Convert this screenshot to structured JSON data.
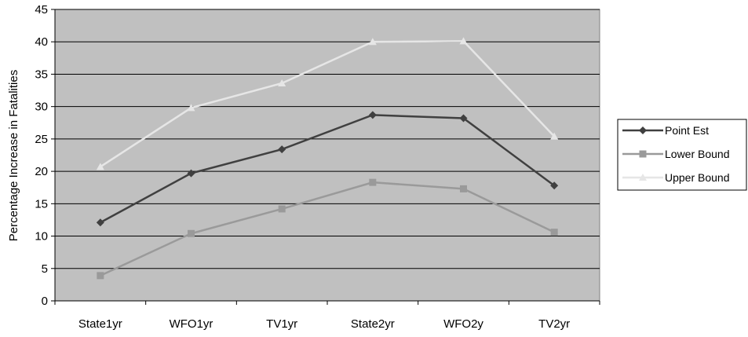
{
  "chart_data": {
    "type": "line",
    "title": "",
    "xlabel": "",
    "ylabel": "Percentage Increase in Fatalities",
    "ylim": [
      0,
      45
    ],
    "yticks": [
      0,
      5,
      10,
      15,
      20,
      25,
      30,
      35,
      40,
      45
    ],
    "grid": true,
    "legend_position": "right",
    "categories": [
      "State1yr",
      "WFO1yr",
      "TV1yr",
      "State2yr",
      "WFO2y",
      "TV2yr"
    ],
    "series": [
      {
        "name": "Point Est",
        "marker": "diamond",
        "color": "#404040",
        "values": [
          12.1,
          19.7,
          23.4,
          28.7,
          28.2,
          17.8
        ]
      },
      {
        "name": "Lower Bound",
        "marker": "square",
        "color": "#9a9a9a",
        "values": [
          3.9,
          10.4,
          14.2,
          18.3,
          17.3,
          10.6
        ]
      },
      {
        "name": "Upper Bound",
        "marker": "triangle",
        "color": "#e6e6e6",
        "values": [
          20.7,
          29.8,
          33.6,
          40.0,
          40.1,
          25.4
        ]
      }
    ],
    "plot_background": "#c0c0c0"
  }
}
